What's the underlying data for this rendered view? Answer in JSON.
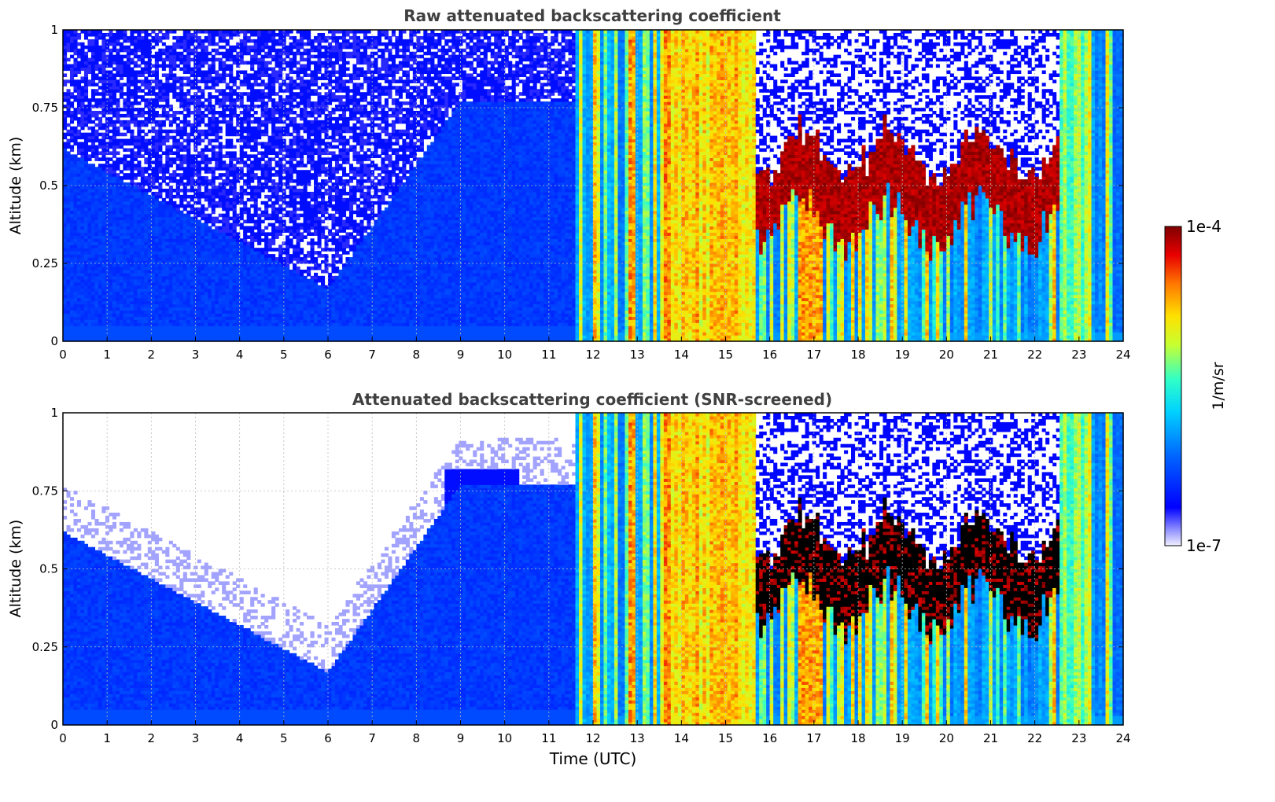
{
  "chart_data": [
    {
      "type": "heatmap",
      "title": "Raw attenuated backscattering coefficient",
      "xlabel": "",
      "ylabel": "Altitude (km)",
      "xlim": [
        0,
        24
      ],
      "ylim": [
        0,
        1
      ],
      "x_ticks": [
        "0",
        "1",
        "2",
        "3",
        "4",
        "5",
        "6",
        "7",
        "8",
        "9",
        "10",
        "11",
        "12",
        "13",
        "14",
        "15",
        "16",
        "17",
        "18",
        "19",
        "20",
        "21",
        "22",
        "23",
        "24"
      ],
      "y_ticks": [
        "0",
        "0.25",
        "0.5",
        "0.75",
        "1"
      ],
      "grid": true,
      "colorscale": "jet (log)",
      "snr_screened": false
    },
    {
      "type": "heatmap",
      "title": "Attenuated backscattering coefficient (SNR-screened)",
      "xlabel": "Time (UTC)",
      "ylabel": "Altitude (km)",
      "xlim": [
        0,
        24
      ],
      "ylim": [
        0,
        1
      ],
      "x_ticks": [
        "0",
        "1",
        "2",
        "3",
        "4",
        "5",
        "6",
        "7",
        "8",
        "9",
        "10",
        "11",
        "12",
        "13",
        "14",
        "15",
        "16",
        "17",
        "18",
        "19",
        "20",
        "21",
        "22",
        "23",
        "24"
      ],
      "y_ticks": [
        "0",
        "0.25",
        "0.5",
        "0.75",
        "1"
      ],
      "grid": true,
      "colorscale": "jet (log)",
      "snr_screened": true
    }
  ],
  "colorbar": {
    "max_label": "1e-4",
    "min_label": "1e-7",
    "unit": "1/m/sr",
    "range": [
      1e-07,
      0.0001
    ]
  },
  "features": {
    "cloud_onset_utc": 11.6,
    "dense_cloud_period_utc": [
      13.5,
      15.7
    ],
    "strong_layer_period_utc": [
      16.0,
      22.6
    ],
    "strong_layer_altitude_km": [
      0.35,
      0.75
    ]
  }
}
